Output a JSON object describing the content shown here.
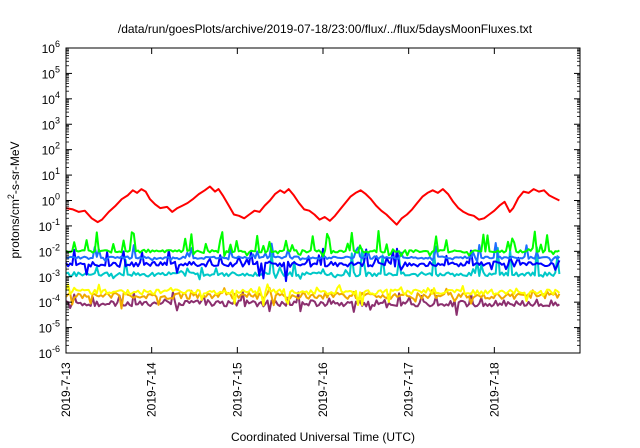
{
  "chart_data": {
    "type": "line",
    "title": "/data/run/goesPlots/archive/2019-07-18/23:00/flux/../flux/5daysMoonFluxes.txt",
    "xlabel": "Coordinated Universal Time (UTC)",
    "ylabel_html": [
      "protons/cm",
      "2",
      "-s-sr-MeV"
    ],
    "yscale": "log",
    "ylim_exp": [
      -6,
      6
    ],
    "y_tick_base": "10",
    "y_ticks": [
      {
        "exp": "-6"
      },
      {
        "exp": "-5"
      },
      {
        "exp": "-4"
      },
      {
        "exp": "-3"
      },
      {
        "exp": "-2"
      },
      {
        "exp": "-1"
      },
      {
        "exp": "0"
      },
      {
        "exp": "1"
      },
      {
        "exp": "2"
      },
      {
        "exp": "3"
      },
      {
        "exp": "4"
      },
      {
        "exp": "5"
      },
      {
        "exp": "6"
      }
    ],
    "x_range": [
      "2019-07-13",
      "2019-07-19"
    ],
    "x_ticks": [
      "2019-7-13",
      "2019-7-14",
      "2019-7-15",
      "2019-7-16",
      "2019-7-17",
      "2019-7-18"
    ],
    "grid": false,
    "legend": "none",
    "colors": {
      "red": "#ff0000",
      "green": "#00ff00",
      "blue": "#0000ff",
      "dodgerblue": "#1e6fff",
      "cyan": "#00c8c8",
      "yellow": "#ffff00",
      "orange": "#f0a800",
      "purple": "#8b2f6e"
    },
    "series": [
      {
        "color": "red",
        "base": -0.35,
        "diurnal_amp": 0.55,
        "phase": 0.0,
        "noise": 0.12,
        "spikes": 0.0,
        "approx_log_range": [
          -1.2,
          0.6
        ]
      },
      {
        "color": "green",
        "base": -2.0,
        "diurnal_amp": 0.0,
        "phase": 0.0,
        "noise": 0.05,
        "spikes": 0.9,
        "approx_log_range": [
          -2.2,
          -1.2
        ]
      },
      {
        "color": "cyan",
        "base": -2.9,
        "diurnal_amp": 0.0,
        "phase": 0.0,
        "noise": 0.08,
        "spikes": 0.8,
        "approx_log_range": [
          -3.1,
          -1.8
        ]
      },
      {
        "color": "dodgerblue",
        "base": -2.25,
        "diurnal_amp": 0.0,
        "phase": 0.0,
        "noise": 0.05,
        "spikes": 0.7,
        "approx_log_range": [
          -2.4,
          -1.6
        ]
      },
      {
        "color": "blue",
        "base": -2.5,
        "diurnal_amp": 0.0,
        "phase": 0.0,
        "noise": 0.1,
        "spikes": 0.7,
        "approx_log_range": [
          -3.2,
          -1.9
        ]
      },
      {
        "color": "yellow",
        "base": -3.6,
        "diurnal_amp": 0.0,
        "phase": 0.0,
        "noise": 0.1,
        "spikes": 0.6,
        "approx_log_range": [
          -4.2,
          -3.3
        ]
      },
      {
        "color": "orange",
        "base": -3.75,
        "diurnal_amp": 0.0,
        "phase": 0.0,
        "noise": 0.12,
        "spikes": 0.5,
        "approx_log_range": [
          -4.3,
          -3.4
        ]
      },
      {
        "color": "purple",
        "base": -4.05,
        "diurnal_amp": 0.0,
        "phase": 0.0,
        "noise": 0.12,
        "spikes": 0.6,
        "approx_log_range": [
          -4.5,
          -3.6
        ]
      }
    ],
    "red_curve_points": [
      [
        0.0,
        -0.3
      ],
      [
        0.08,
        -0.35
      ],
      [
        0.15,
        -0.45
      ],
      [
        0.22,
        -0.4
      ],
      [
        0.3,
        -0.7
      ],
      [
        0.37,
        -0.85
      ],
      [
        0.42,
        -0.75
      ],
      [
        0.5,
        -0.45
      ],
      [
        0.58,
        -0.2
      ],
      [
        0.65,
        0.05
      ],
      [
        0.72,
        0.2
      ],
      [
        0.78,
        0.4
      ],
      [
        0.83,
        0.3
      ],
      [
        0.88,
        0.45
      ],
      [
        0.93,
        0.35
      ],
      [
        0.98,
        0.05
      ],
      [
        1.04,
        -0.15
      ],
      [
        1.1,
        -0.3
      ],
      [
        1.18,
        -0.25
      ],
      [
        1.24,
        -0.45
      ],
      [
        1.3,
        -0.3
      ],
      [
        1.36,
        -0.2
      ],
      [
        1.42,
        -0.1
      ],
      [
        1.48,
        0.05
      ],
      [
        1.55,
        0.25
      ],
      [
        1.62,
        0.4
      ],
      [
        1.68,
        0.55
      ],
      [
        1.74,
        0.35
      ],
      [
        1.78,
        0.45
      ],
      [
        1.83,
        0.2
      ],
      [
        1.9,
        -0.2
      ],
      [
        1.96,
        -0.55
      ],
      [
        2.02,
        -0.6
      ],
      [
        2.08,
        -0.7
      ],
      [
        2.14,
        -0.55
      ],
      [
        2.2,
        -0.4
      ],
      [
        2.26,
        -0.45
      ],
      [
        2.32,
        -0.2
      ],
      [
        2.38,
        0.0
      ],
      [
        2.44,
        0.25
      ],
      [
        2.5,
        0.4
      ],
      [
        2.55,
        0.3
      ],
      [
        2.6,
        0.45
      ],
      [
        2.66,
        0.2
      ],
      [
        2.72,
        -0.1
      ],
      [
        2.78,
        -0.35
      ],
      [
        2.84,
        -0.4
      ],
      [
        2.9,
        -0.55
      ],
      [
        2.96,
        -0.75
      ],
      [
        3.02,
        -0.65
      ],
      [
        3.08,
        -0.8
      ],
      [
        3.14,
        -0.6
      ],
      [
        3.2,
        -0.35
      ],
      [
        3.26,
        -0.1
      ],
      [
        3.32,
        0.15
      ],
      [
        3.38,
        0.3
      ],
      [
        3.44,
        0.4
      ],
      [
        3.5,
        0.25
      ],
      [
        3.56,
        0.05
      ],
      [
        3.62,
        -0.2
      ],
      [
        3.68,
        -0.4
      ],
      [
        3.74,
        -0.55
      ],
      [
        3.8,
        -0.75
      ],
      [
        3.86,
        -0.95
      ],
      [
        3.92,
        -0.7
      ],
      [
        3.98,
        -0.55
      ],
      [
        4.04,
        -0.35
      ],
      [
        4.1,
        -0.1
      ],
      [
        4.16,
        0.15
      ],
      [
        4.22,
        0.3
      ],
      [
        4.28,
        0.4
      ],
      [
        4.34,
        0.3
      ],
      [
        4.4,
        0.45
      ],
      [
        4.46,
        0.25
      ],
      [
        4.52,
        -0.05
      ],
      [
        4.58,
        -0.3
      ],
      [
        4.64,
        -0.45
      ],
      [
        4.7,
        -0.55
      ],
      [
        4.76,
        -0.6
      ],
      [
        4.82,
        -0.75
      ],
      [
        4.88,
        -0.7
      ],
      [
        4.94,
        -0.55
      ],
      [
        5.0,
        -0.4
      ],
      [
        5.06,
        -0.2
      ],
      [
        5.12,
        -0.05
      ],
      [
        5.18,
        -0.45
      ],
      [
        5.22,
        -0.3
      ],
      [
        5.28,
        0.1
      ],
      [
        5.34,
        0.35
      ],
      [
        5.4,
        0.3
      ],
      [
        5.46,
        0.45
      ],
      [
        5.52,
        0.35
      ],
      [
        5.58,
        0.4
      ],
      [
        5.64,
        0.2
      ],
      [
        5.7,
        0.1
      ],
      [
        5.76,
        0.0
      ]
    ]
  }
}
